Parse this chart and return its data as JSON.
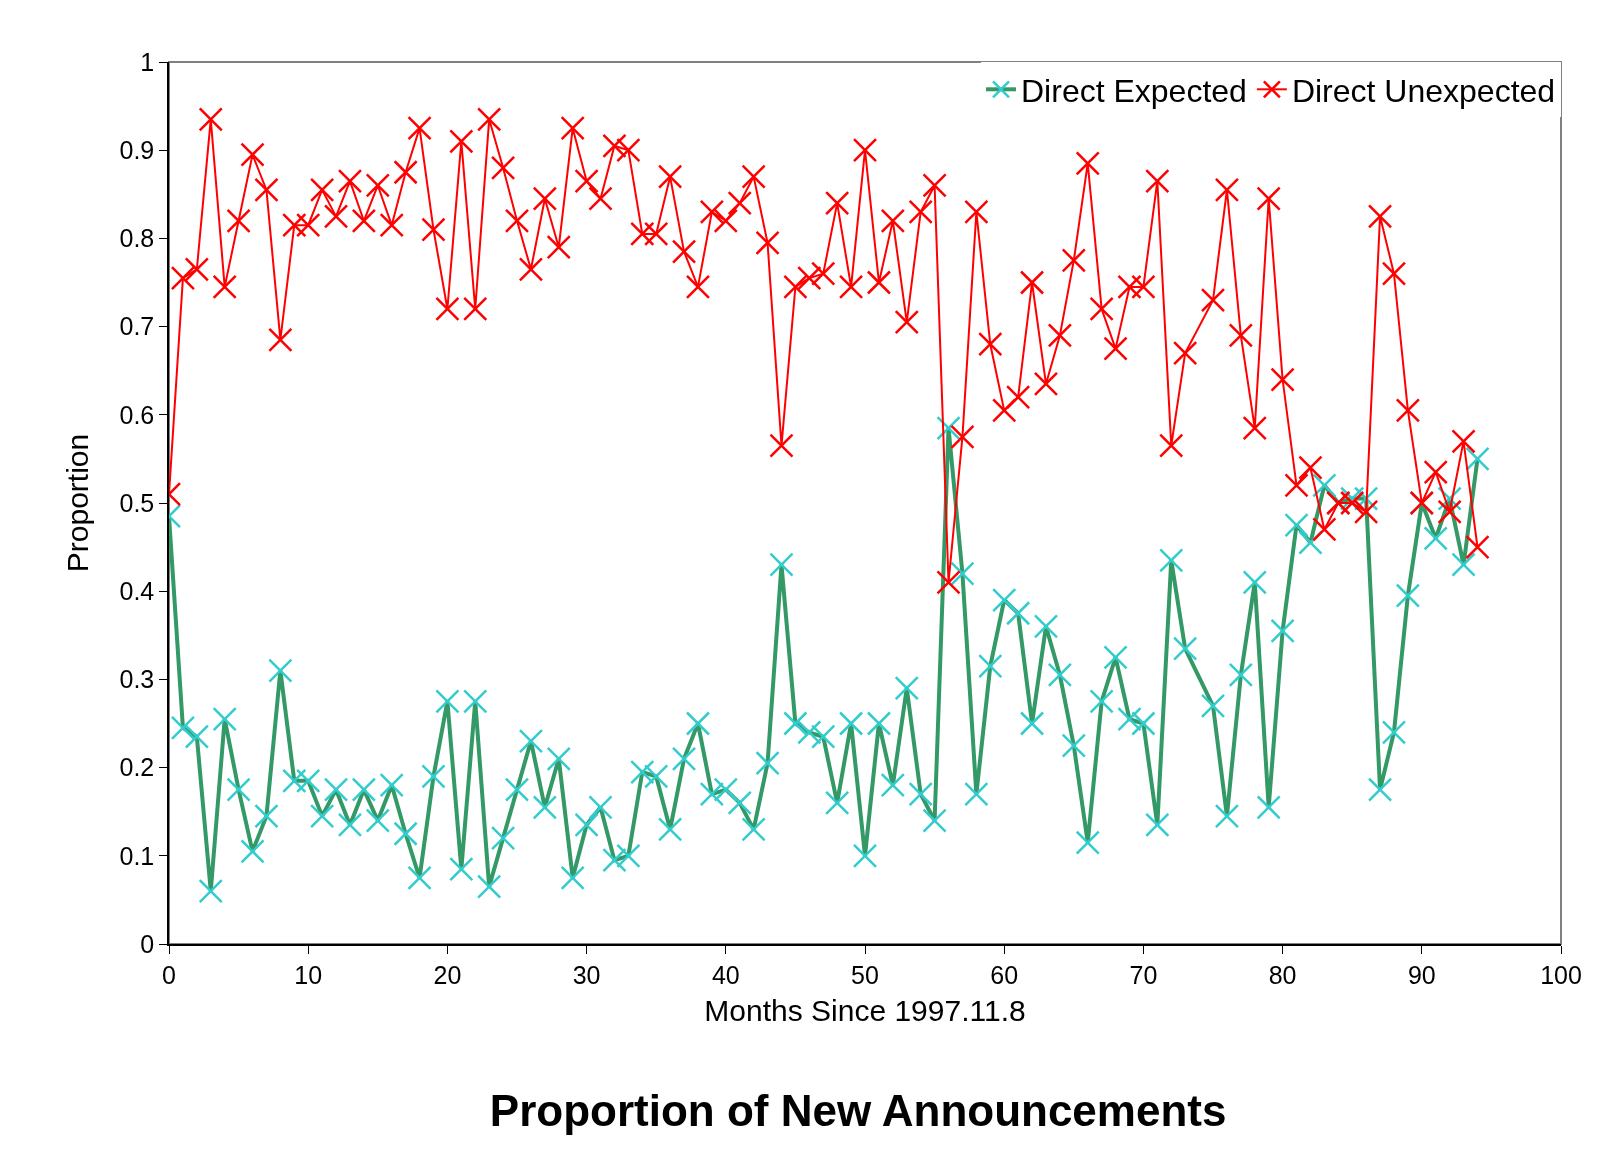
{
  "chart_data": {
    "type": "line",
    "title": "Proportion of New Announcements",
    "xlabel": "Months Since 1997.11.8",
    "ylabel": "Proportion",
    "xlim": [
      0,
      100
    ],
    "xticks": [
      0,
      10,
      20,
      30,
      40,
      50,
      60,
      70,
      80,
      90,
      100
    ],
    "ylim": [
      0,
      1
    ],
    "yticks": [
      0,
      0.1,
      0.2,
      0.3,
      0.4,
      0.5,
      0.6,
      0.7,
      0.8,
      0.9,
      1
    ],
    "grid": false,
    "legend": "top right",
    "series": [
      {
        "name": "Direct Expected",
        "color": "#339966",
        "marker": "cross",
        "x": [
          0,
          1,
          2,
          3,
          4,
          5,
          6,
          7,
          8,
          9,
          10,
          11,
          12,
          13,
          14,
          15,
          16,
          17,
          18,
          19,
          20,
          21,
          22,
          23,
          24,
          25,
          26,
          27,
          28,
          29,
          30,
          31,
          32,
          33,
          34,
          35,
          36,
          37,
          38,
          39,
          40,
          41,
          42,
          43,
          44,
          45,
          46,
          47,
          48,
          49,
          50,
          51,
          52,
          53,
          54,
          55,
          56,
          57,
          58,
          59,
          60,
          61,
          62,
          63,
          64,
          65,
          66,
          67,
          68,
          69,
          70,
          71,
          72,
          73,
          75,
          76,
          77,
          78,
          79,
          80,
          81,
          82,
          83,
          84,
          85,
          86,
          87,
          88,
          89,
          90,
          91,
          92,
          93,
          94
        ],
        "values": [
          0.485,
          0.245,
          0.235,
          0.06,
          0.255,
          0.175,
          0.105,
          0.145,
          0.31,
          0.185,
          0.185,
          0.145,
          0.175,
          0.135,
          0.175,
          0.14,
          0.18,
          0.125,
          0.075,
          0.19,
          0.275,
          0.085,
          0.275,
          0.065,
          0.12,
          0.175,
          0.23,
          0.155,
          0.21,
          0.075,
          0.135,
          0.155,
          0.095,
          0.1,
          0.195,
          0.19,
          0.13,
          0.21,
          0.25,
          0.17,
          0.175,
          0.16,
          0.13,
          0.205,
          0.43,
          0.25,
          0.24,
          0.235,
          0.16,
          0.25,
          0.1,
          0.25,
          0.18,
          0.29,
          0.17,
          0.14,
          0.585,
          0.42,
          0.17,
          0.315,
          0.39,
          0.375,
          0.25,
          0.36,
          0.305,
          0.225,
          0.115,
          0.275,
          0.325,
          0.255,
          0.25,
          0.135,
          0.435,
          0.335,
          0.27,
          0.145,
          0.305,
          0.41,
          0.155,
          0.355,
          0.475,
          0.455,
          0.52,
          0.5,
          0.505,
          0.505,
          0.175,
          0.24,
          0.395,
          0.5,
          0.46,
          0.505,
          0.43,
          0.55
        ]
      },
      {
        "name": "Direct Unexpected",
        "color": "#ff0000",
        "marker": "cross",
        "x": [
          0,
          1,
          2,
          3,
          4,
          5,
          6,
          7,
          8,
          9,
          10,
          11,
          12,
          13,
          14,
          15,
          16,
          17,
          18,
          19,
          20,
          21,
          22,
          23,
          24,
          25,
          26,
          27,
          28,
          29,
          30,
          31,
          32,
          33,
          34,
          35,
          36,
          37,
          38,
          39,
          40,
          41,
          42,
          43,
          44,
          45,
          46,
          47,
          48,
          49,
          50,
          51,
          52,
          53,
          54,
          55,
          56,
          57,
          58,
          59,
          60,
          61,
          62,
          63,
          64,
          65,
          66,
          67,
          68,
          69,
          70,
          71,
          72,
          73,
          75,
          76,
          77,
          78,
          79,
          80,
          81,
          82,
          83,
          84,
          85,
          86,
          87,
          88,
          89,
          90,
          91,
          92,
          93,
          94
        ],
        "values": [
          0.51,
          0.755,
          0.765,
          0.935,
          0.745,
          0.82,
          0.895,
          0.855,
          0.685,
          0.815,
          0.815,
          0.855,
          0.825,
          0.865,
          0.82,
          0.86,
          0.815,
          0.875,
          0.925,
          0.81,
          0.72,
          0.91,
          0.72,
          0.935,
          0.88,
          0.82,
          0.765,
          0.845,
          0.79,
          0.925,
          0.865,
          0.845,
          0.905,
          0.9,
          0.805,
          0.805,
          0.87,
          0.785,
          0.745,
          0.83,
          0.82,
          0.84,
          0.87,
          0.795,
          0.565,
          0.745,
          0.755,
          0.76,
          0.84,
          0.745,
          0.9,
          0.75,
          0.82,
          0.705,
          0.83,
          0.86,
          0.41,
          0.575,
          0.83,
          0.68,
          0.605,
          0.62,
          0.75,
          0.635,
          0.69,
          0.775,
          0.885,
          0.72,
          0.675,
          0.745,
          0.745,
          0.865,
          0.565,
          0.67,
          0.73,
          0.855,
          0.69,
          0.585,
          0.845,
          0.64,
          0.52,
          0.54,
          0.47,
          0.5,
          0.5,
          0.49,
          0.825,
          0.76,
          0.605,
          0.5,
          0.535,
          0.49,
          0.57,
          0.45
        ]
      }
    ]
  }
}
